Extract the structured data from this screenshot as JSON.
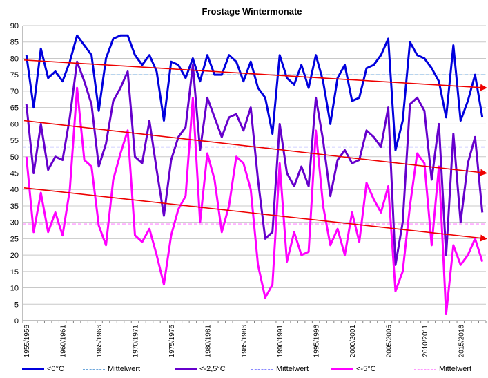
{
  "chart_data": {
    "type": "line",
    "title": "Frostage Wintermonate",
    "xlabel": "",
    "ylabel": "",
    "ylim": [
      0,
      90
    ],
    "yticks": [
      0,
      5,
      10,
      15,
      20,
      25,
      30,
      35,
      40,
      45,
      50,
      55,
      60,
      65,
      70,
      75,
      80,
      85,
      90
    ],
    "xtick_labels": [
      "1955/1956",
      "1960/1961",
      "1965/1966",
      "1970/1971",
      "1975/1976",
      "1980/1981",
      "1985/1986",
      "1990/1991",
      "1995/1996",
      "2000/2001",
      "2005/2006",
      "2010/2011",
      "2015/2016"
    ],
    "x_start": "1955/1956",
    "n_seasons": 64,
    "series": [
      {
        "name": "<0°C",
        "color": "#0000dd",
        "width": 3,
        "dashed": false,
        "values": [
          81,
          65,
          83,
          74,
          76,
          73,
          79,
          87,
          84,
          81,
          64,
          80,
          86,
          87,
          87,
          81,
          78,
          81,
          76,
          61,
          79,
          78,
          74,
          80,
          73,
          81,
          75,
          75,
          81,
          79,
          73,
          79,
          71,
          68,
          57,
          81,
          74,
          72,
          78,
          71,
          81,
          73,
          60,
          74,
          78,
          67,
          68,
          77,
          78,
          81,
          86,
          52,
          61,
          85,
          81,
          80,
          77,
          73,
          62,
          84,
          61,
          67,
          75,
          62
        ]
      },
      {
        "name": "Mittelwert",
        "color": "#6fa8dc",
        "width": 1,
        "dashed": true,
        "constant": 75
      },
      {
        "name": "<-2,5°C",
        "color": "#6600cc",
        "width": 3,
        "dashed": false,
        "values": [
          66,
          45,
          60,
          46,
          50,
          49,
          62,
          79,
          73,
          66,
          47,
          54,
          67,
          71,
          76,
          50,
          48,
          61,
          46,
          32,
          49,
          56,
          59,
          78,
          52,
          68,
          62,
          56,
          62,
          63,
          58,
          65,
          43,
          25,
          27,
          60,
          45,
          41,
          47,
          41,
          68,
          55,
          38,
          49,
          52,
          48,
          49,
          58,
          56,
          53,
          65,
          17,
          30,
          66,
          68,
          64,
          43,
          60,
          20,
          57,
          30,
          48,
          56,
          33
        ]
      },
      {
        "name": "Mittelwert",
        "color": "#8888ff",
        "width": 1,
        "dashed": true,
        "constant": 53
      },
      {
        "name": "<-5°C",
        "color": "#ff00ff",
        "width": 3,
        "dashed": false,
        "values": [
          50,
          27,
          39,
          27,
          33,
          26,
          40,
          71,
          49,
          47,
          29,
          23,
          43,
          51,
          58,
          26,
          24,
          28,
          20,
          11,
          26,
          34,
          38,
          68,
          30,
          51,
          43,
          27,
          35,
          50,
          48,
          40,
          17,
          7,
          11,
          48,
          18,
          27,
          20,
          21,
          58,
          35,
          23,
          28,
          20,
          33,
          24,
          42,
          37,
          33,
          41,
          9,
          15,
          35,
          51,
          48,
          23,
          47,
          2,
          23,
          17,
          20,
          25,
          18
        ]
      },
      {
        "name": "Mittelwert",
        "color": "#ff99ff",
        "width": 1,
        "dashed": true,
        "constant": 29.5
      }
    ],
    "trendlines": [
      {
        "series": "<0°C",
        "color": "#ee0000",
        "start": 79.5,
        "end": 71
      },
      {
        "series": "<-2,5°C",
        "color": "#ee0000",
        "start": 61,
        "end": 45
      },
      {
        "series": "<-5°C",
        "color": "#ee0000",
        "start": 40.5,
        "end": 25
      }
    ],
    "legend_position": "bottom"
  }
}
